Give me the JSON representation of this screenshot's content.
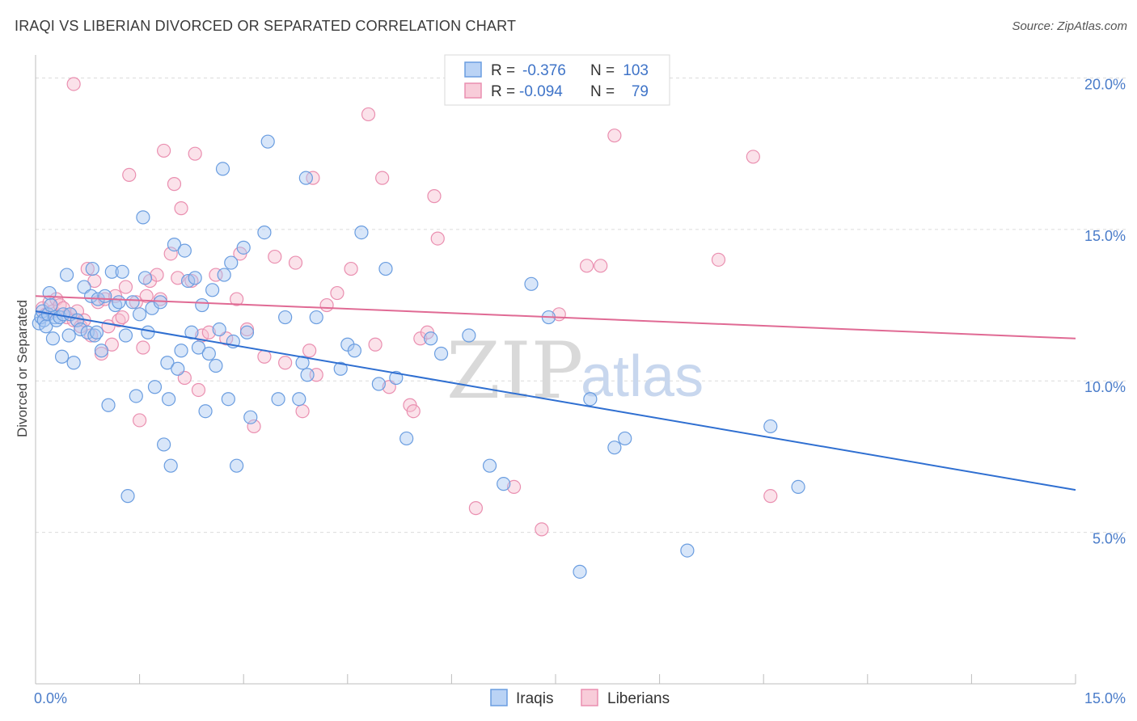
{
  "title": "IRAQI VS LIBERIAN DIVORCED OR SEPARATED CORRELATION CHART",
  "source": "Source: ZipAtlas.com",
  "watermark": {
    "zip": "ZIP",
    "atlas": "atlas"
  },
  "legend": {
    "r_label": "R =",
    "n_label": "N =",
    "rows": [
      {
        "r": "-0.376",
        "n": "103"
      },
      {
        "r": "-0.094",
        "n": "79"
      }
    ]
  },
  "colors": {
    "iraqis_fill": "#a9c8f2",
    "iraqis_stroke": "#6a9de0",
    "iraqis_line": "#2f6fd1",
    "liberians_fill": "#f6bfd0",
    "liberians_stroke": "#ea8fb0",
    "liberians_line": "#e06a94",
    "grid": "#dcdcdc",
    "tick_text": "#4a7cc9"
  },
  "chart_data": {
    "type": "scatter",
    "title": "IRAQI VS LIBERIAN DIVORCED OR SEPARATED CORRELATION CHART",
    "xlabel": "",
    "ylabel": "Divorced or Separated",
    "xlim": [
      0,
      15
    ],
    "ylim": [
      0,
      21
    ],
    "x_ticks": [
      {
        "value": 0,
        "label": "0.0%"
      },
      {
        "value": 15,
        "label": "15.0%"
      }
    ],
    "y_ticks": [
      {
        "value": 5,
        "label": "5.0%"
      },
      {
        "value": 10,
        "label": "10.0%"
      },
      {
        "value": 15,
        "label": "15.0%"
      },
      {
        "value": 20,
        "label": "20.0%"
      }
    ],
    "grid": true,
    "legend_placement": "top-center",
    "series": [
      {
        "name": "Iraqis",
        "r": -0.376,
        "n": 103,
        "trend": [
          [
            0,
            12.3
          ],
          [
            15,
            6.4
          ]
        ],
        "points": [
          [
            0.05,
            11.9
          ],
          [
            0.08,
            12.1
          ],
          [
            0.1,
            12.3
          ],
          [
            0.12,
            12.0
          ],
          [
            0.15,
            11.8
          ],
          [
            0.18,
            12.2
          ],
          [
            0.2,
            12.9
          ],
          [
            0.22,
            12.5
          ],
          [
            0.25,
            11.4
          ],
          [
            0.28,
            12.1
          ],
          [
            0.3,
            12.0
          ],
          [
            0.35,
            12.1
          ],
          [
            0.38,
            10.8
          ],
          [
            0.4,
            12.2
          ],
          [
            0.45,
            13.5
          ],
          [
            0.48,
            11.5
          ],
          [
            0.5,
            12.2
          ],
          [
            0.55,
            10.6
          ],
          [
            0.6,
            12.0
          ],
          [
            0.65,
            11.7
          ],
          [
            0.7,
            13.1
          ],
          [
            0.75,
            11.6
          ],
          [
            0.8,
            12.8
          ],
          [
            0.82,
            13.7
          ],
          [
            0.85,
            11.5
          ],
          [
            0.88,
            11.6
          ],
          [
            0.9,
            12.7
          ],
          [
            0.95,
            11.0
          ],
          [
            1.0,
            12.8
          ],
          [
            1.05,
            9.2
          ],
          [
            1.1,
            13.6
          ],
          [
            1.15,
            12.5
          ],
          [
            1.2,
            12.6
          ],
          [
            1.25,
            13.6
          ],
          [
            1.3,
            11.5
          ],
          [
            1.33,
            6.2
          ],
          [
            1.4,
            12.6
          ],
          [
            1.45,
            9.5
          ],
          [
            1.5,
            12.2
          ],
          [
            1.55,
            15.4
          ],
          [
            1.58,
            13.4
          ],
          [
            1.62,
            11.6
          ],
          [
            1.68,
            12.4
          ],
          [
            1.72,
            9.8
          ],
          [
            1.8,
            12.6
          ],
          [
            1.85,
            7.9
          ],
          [
            1.9,
            10.6
          ],
          [
            1.92,
            9.4
          ],
          [
            1.95,
            7.2
          ],
          [
            2.0,
            14.5
          ],
          [
            2.05,
            10.4
          ],
          [
            2.1,
            11.0
          ],
          [
            2.15,
            14.3
          ],
          [
            2.2,
            13.3
          ],
          [
            2.25,
            11.6
          ],
          [
            2.3,
            13.4
          ],
          [
            2.35,
            11.1
          ],
          [
            2.4,
            12.5
          ],
          [
            2.45,
            9.0
          ],
          [
            2.5,
            10.9
          ],
          [
            2.55,
            13.0
          ],
          [
            2.6,
            10.5
          ],
          [
            2.65,
            11.7
          ],
          [
            2.7,
            17.0
          ],
          [
            2.72,
            13.5
          ],
          [
            2.78,
            9.4
          ],
          [
            2.82,
            13.9
          ],
          [
            2.85,
            11.3
          ],
          [
            2.9,
            7.2
          ],
          [
            3.0,
            14.4
          ],
          [
            3.05,
            11.6
          ],
          [
            3.1,
            8.8
          ],
          [
            3.3,
            14.9
          ],
          [
            3.35,
            17.9
          ],
          [
            3.5,
            9.4
          ],
          [
            3.6,
            12.1
          ],
          [
            3.8,
            9.4
          ],
          [
            3.85,
            10.6
          ],
          [
            3.9,
            16.7
          ],
          [
            3.92,
            10.2
          ],
          [
            4.05,
            12.1
          ],
          [
            4.4,
            10.4
          ],
          [
            4.5,
            11.2
          ],
          [
            4.6,
            11.0
          ],
          [
            4.7,
            14.9
          ],
          [
            4.95,
            9.9
          ],
          [
            5.05,
            13.7
          ],
          [
            5.2,
            10.1
          ],
          [
            5.35,
            8.1
          ],
          [
            5.7,
            11.4
          ],
          [
            5.85,
            10.9
          ],
          [
            6.25,
            11.5
          ],
          [
            6.55,
            7.2
          ],
          [
            6.75,
            6.6
          ],
          [
            7.15,
            13.2
          ],
          [
            7.4,
            12.1
          ],
          [
            7.85,
            3.7
          ],
          [
            8.0,
            9.4
          ],
          [
            8.35,
            7.8
          ],
          [
            8.5,
            8.1
          ],
          [
            9.4,
            4.4
          ],
          [
            10.6,
            8.5
          ],
          [
            11.0,
            6.5
          ]
        ]
      },
      {
        "name": "Liberians",
        "r": -0.094,
        "n": 79,
        "trend": [
          [
            0,
            12.8
          ],
          [
            15,
            11.4
          ]
        ],
        "points": [
          [
            0.1,
            12.4
          ],
          [
            0.15,
            12.2
          ],
          [
            0.2,
            12.6
          ],
          [
            0.25,
            12.3
          ],
          [
            0.3,
            12.7
          ],
          [
            0.35,
            12.5
          ],
          [
            0.4,
            12.4
          ],
          [
            0.45,
            12.1
          ],
          [
            0.5,
            12.2
          ],
          [
            0.55,
            12.0
          ],
          [
            0.6,
            12.3
          ],
          [
            0.65,
            11.8
          ],
          [
            0.7,
            12.0
          ],
          [
            0.75,
            13.7
          ],
          [
            0.8,
            11.5
          ],
          [
            0.85,
            13.3
          ],
          [
            0.9,
            12.6
          ],
          [
            0.95,
            10.9
          ],
          [
            1.0,
            12.7
          ],
          [
            1.05,
            11.8
          ],
          [
            1.1,
            11.2
          ],
          [
            1.15,
            12.8
          ],
          [
            1.2,
            12.0
          ],
          [
            1.25,
            12.1
          ],
          [
            1.3,
            13.1
          ],
          [
            1.35,
            16.8
          ],
          [
            1.45,
            12.6
          ],
          [
            1.5,
            8.7
          ],
          [
            1.55,
            11.1
          ],
          [
            1.6,
            12.8
          ],
          [
            1.65,
            13.3
          ],
          [
            1.75,
            13.5
          ],
          [
            1.8,
            12.7
          ],
          [
            1.85,
            17.6
          ],
          [
            1.95,
            14.2
          ],
          [
            2.0,
            16.5
          ],
          [
            2.05,
            13.4
          ],
          [
            2.1,
            15.7
          ],
          [
            2.15,
            10.1
          ],
          [
            2.25,
            13.3
          ],
          [
            2.3,
            17.5
          ],
          [
            2.35,
            9.7
          ],
          [
            2.4,
            11.5
          ],
          [
            2.5,
            11.6
          ],
          [
            2.6,
            13.5
          ],
          [
            2.75,
            11.4
          ],
          [
            2.9,
            12.7
          ],
          [
            2.95,
            14.2
          ],
          [
            3.05,
            11.7
          ],
          [
            3.15,
            8.5
          ],
          [
            3.3,
            10.8
          ],
          [
            3.45,
            14.1
          ],
          [
            3.6,
            10.6
          ],
          [
            3.75,
            13.9
          ],
          [
            3.85,
            9.0
          ],
          [
            3.95,
            11.0
          ],
          [
            4.0,
            16.7
          ],
          [
            4.05,
            10.2
          ],
          [
            4.2,
            12.5
          ],
          [
            4.35,
            12.9
          ],
          [
            4.55,
            13.7
          ],
          [
            4.8,
            18.8
          ],
          [
            4.9,
            11.2
          ],
          [
            5.0,
            16.7
          ],
          [
            5.1,
            9.8
          ],
          [
            5.4,
            9.2
          ],
          [
            5.45,
            9.0
          ],
          [
            5.55,
            11.4
          ],
          [
            5.65,
            11.6
          ],
          [
            5.75,
            16.1
          ],
          [
            5.8,
            14.7
          ],
          [
            6.35,
            5.8
          ],
          [
            6.9,
            6.5
          ],
          [
            7.3,
            5.1
          ],
          [
            7.55,
            12.2
          ],
          [
            7.95,
            13.8
          ],
          [
            8.15,
            13.8
          ],
          [
            8.35,
            18.1
          ],
          [
            9.85,
            14.0
          ],
          [
            10.35,
            17.4
          ],
          [
            10.6,
            6.2
          ],
          [
            0.55,
            19.8
          ]
        ]
      }
    ]
  },
  "bottom_legend": [
    "Iraqis",
    "Liberians"
  ]
}
